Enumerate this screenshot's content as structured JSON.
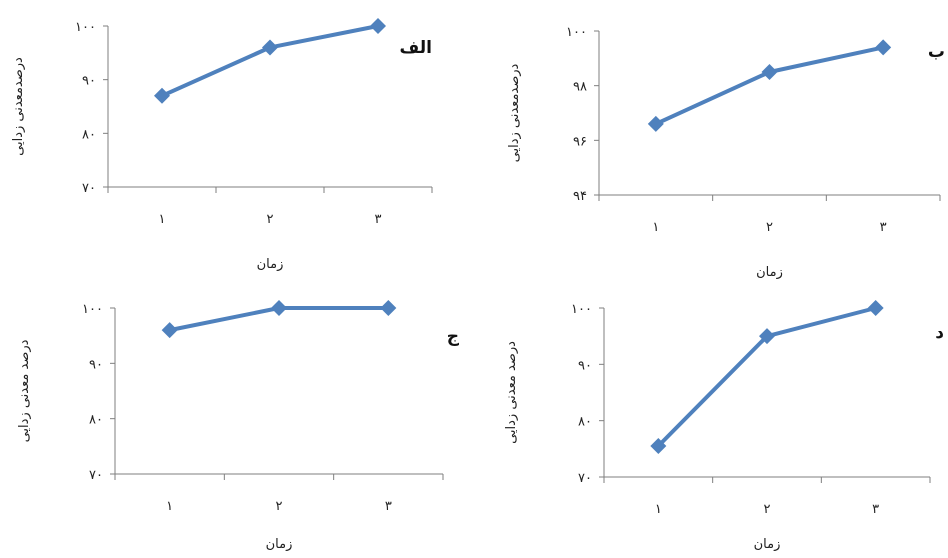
{
  "colors": {
    "line": "#4f81bd",
    "marker": "#4f81bd",
    "axis": "#7f7f7f"
  },
  "chart_data": [
    {
      "type": "line",
      "panel_label": "الف",
      "categories": [
        "۱",
        "۲",
        "۳"
      ],
      "series": [
        {
          "values": [
            87,
            96,
            100
          ]
        }
      ],
      "xlabel": "زمان",
      "ylabel": "درصدمعدنی زدایی",
      "ylim": [
        70,
        100
      ],
      "yticks": [
        "۷۰",
        "۸۰",
        "۹۰",
        "۱۰۰"
      ],
      "grid": false
    },
    {
      "type": "line",
      "panel_label": "ب",
      "categories": [
        "۱",
        "۲",
        "۳"
      ],
      "series": [
        {
          "values": [
            96.6,
            98.5,
            99.4
          ]
        }
      ],
      "xlabel": "زمان",
      "ylabel": "درصدمعدنی زدایی",
      "ylim": [
        94,
        100
      ],
      "yticks": [
        "۹۴",
        "۹۶",
        "۹۸",
        "۱۰۰"
      ],
      "grid": false
    },
    {
      "type": "line",
      "panel_label": "ج",
      "categories": [
        "۱",
        "۲",
        "۳"
      ],
      "series": [
        {
          "values": [
            96,
            100,
            100
          ]
        }
      ],
      "xlabel": "زمان",
      "ylabel": "درصد معدنی زدایی",
      "ylim": [
        70,
        100
      ],
      "yticks": [
        "۷۰",
        "۸۰",
        "۹۰",
        "۱۰۰"
      ],
      "grid": false
    },
    {
      "type": "line",
      "panel_label": "د",
      "categories": [
        "۱",
        "۲",
        "۳"
      ],
      "series": [
        {
          "values": [
            75.5,
            95,
            100
          ]
        }
      ],
      "xlabel": "زمان",
      "ylabel": "درصد معدنی زدایی",
      "ylim": [
        70,
        100
      ],
      "yticks": [
        "۷۰",
        "۸۰",
        "۹۰",
        "۱۰۰"
      ],
      "grid": false
    }
  ]
}
